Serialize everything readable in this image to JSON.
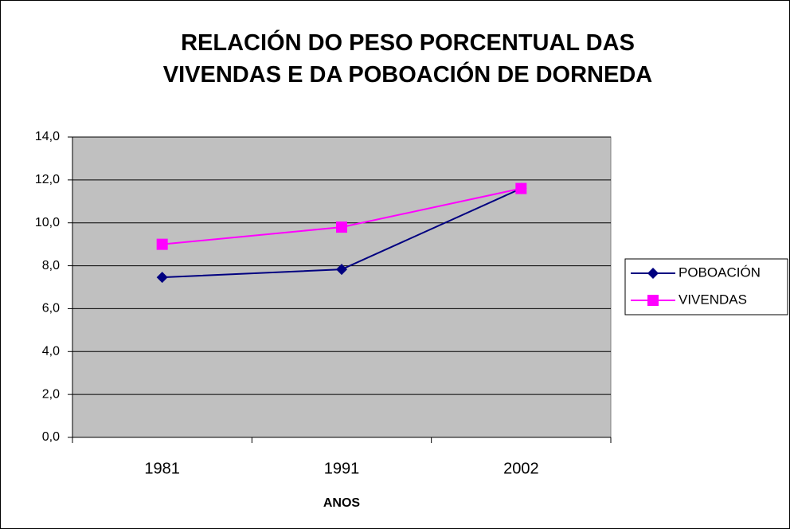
{
  "chart_data": {
    "type": "line",
    "title": "RELACIÓN DO PESO PORCENTUAL DAS VIVENDAS E DA POBOACIÓN DE DORNEDA",
    "xlabel": "ANOS",
    "categories": [
      "1981",
      "1991",
      "2002"
    ],
    "series": [
      {
        "name": "POBOACIÓN",
        "color": "#000080",
        "marker": "diamond",
        "values": [
          7.46,
          7.83,
          11.6
        ]
      },
      {
        "name": "VIVENDAS",
        "color": "#ff00ff",
        "marker": "square",
        "values": [
          9.0,
          9.8,
          11.6
        ]
      }
    ],
    "ylim": [
      0,
      14
    ],
    "yticks": [
      {
        "value": 0,
        "label": "0,0"
      },
      {
        "value": 2,
        "label": "2,0"
      },
      {
        "value": 4,
        "label": "4,0"
      },
      {
        "value": 6,
        "label": "6,0"
      },
      {
        "value": 8,
        "label": "8,0"
      },
      {
        "value": 10,
        "label": "10,0"
      },
      {
        "value": 12,
        "label": "12,0"
      },
      {
        "value": 14,
        "label": "14,0"
      }
    ],
    "grid": true,
    "legend": "right"
  }
}
